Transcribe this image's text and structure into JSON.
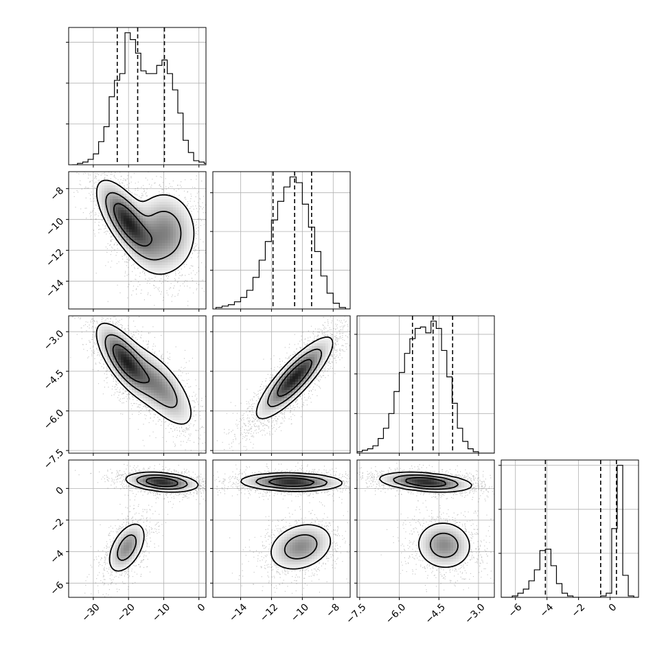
{
  "chart_data": {
    "type": "corner",
    "title": "",
    "grid": true,
    "colors": {
      "ink": "#000000",
      "grid": "#b0b0b0",
      "background": "#ffffff"
    },
    "parameters": [
      {
        "range": [
          -37,
          2
        ],
        "ticks": [
          -30,
          -20,
          -10,
          0
        ],
        "tick_labels": [
          "−30",
          "−20",
          "−10",
          "0"
        ],
        "quantiles": [
          -23.2,
          -17.4,
          -9.8
        ],
        "hist": {
          "start": -36,
          "width": 1.5,
          "counts": [
            0,
            1,
            2,
            4,
            8,
            17,
            28,
            50,
            62,
            67,
            97,
            92,
            82,
            69,
            67,
            67,
            73,
            77,
            67,
            55,
            38,
            18,
            9,
            3,
            2,
            1
          ]
        }
      },
      {
        "range": [
          -15.8,
          -6.9
        ],
        "ticks": [
          -14,
          -12,
          -10,
          -8
        ],
        "tick_labels": [
          "−14",
          "−12",
          "−10",
          "−8"
        ],
        "quantiles": [
          -11.9,
          -10.5,
          -9.4
        ],
        "hist": {
          "start": -15.6,
          "width": 0.4,
          "counts": [
            1,
            2,
            3,
            5,
            8,
            13,
            22,
            34,
            47,
            62,
            75,
            85,
            92,
            88,
            73,
            57,
            40,
            23,
            11,
            4,
            1,
            0
          ]
        }
      },
      {
        "range": [
          -7.6,
          -2.4
        ],
        "ticks": [
          -7.5,
          -6.0,
          -4.5,
          -3.0
        ],
        "tick_labels": [
          "−7.5",
          "−6.0",
          "−4.5",
          "−3.0"
        ],
        "quantiles": [
          -5.5,
          -4.72,
          -3.98
        ],
        "hist": {
          "start": -7.6,
          "width": 0.2,
          "counts": [
            1,
            2,
            3,
            5,
            10,
            17,
            27,
            42,
            55,
            68,
            78,
            85,
            86,
            82,
            90,
            85,
            70,
            52,
            34,
            17,
            8,
            3,
            1,
            0,
            0,
            0
          ]
        }
      },
      {
        "range": [
          -6.9,
          1.8
        ],
        "ticks": [
          -6,
          -4,
          -2,
          0
        ],
        "tick_labels": [
          "−6",
          "−4",
          "−2",
          "0"
        ],
        "quantiles": [
          -4.1,
          -0.6,
          0.4
        ],
        "hist": {
          "start": -6.9,
          "width": 0.35,
          "counts": [
            0,
            0,
            1,
            3,
            6,
            12,
            20,
            34,
            35,
            23,
            10,
            3,
            1,
            0,
            0,
            0,
            0,
            0,
            1,
            3,
            50,
            96,
            16,
            1,
            0
          ]
        }
      }
    ],
    "diagonal_y_ticks": [
      [
        30,
        60,
        90
      ],
      [
        27,
        54,
        81
      ],
      [
        27,
        54,
        81
      ],
      [
        32,
        64,
        96
      ]
    ],
    "panels_2d": [
      {
        "x": 0,
        "y": 1,
        "modes": [
          {
            "mx": -20.5,
            "my": -10.1,
            "sx": 4.2,
            "sy": 1.3,
            "rho": -0.7,
            "w": 1.0
          },
          {
            "mx": -10,
            "my": -10.9,
            "sx": 4.8,
            "sy": 1.4,
            "rho": 0.0,
            "w": 0.62
          }
        ]
      },
      {
        "x": 0,
        "y": 2,
        "modes": [
          {
            "mx": -21,
            "my": -4.1,
            "sx": 4.0,
            "sy": 0.7,
            "rho": -0.72,
            "w": 1.0
          },
          {
            "mx": -11,
            "my": -5.1,
            "sx": 5.0,
            "sy": 0.8,
            "rho": -0.7,
            "w": 0.6
          }
        ]
      },
      {
        "x": 1,
        "y": 2,
        "modes": [
          {
            "mx": -10.5,
            "my": -4.75,
            "sx": 1.2,
            "sy": 0.75,
            "rho": 0.85,
            "w": 1.0
          }
        ]
      },
      {
        "x": 0,
        "y": 3,
        "modes": [
          {
            "mx": -10.5,
            "my": 0.4,
            "sx": 5.0,
            "sy": 0.3,
            "rho": -0.3,
            "w": 1.0
          },
          {
            "mx": -20.5,
            "my": -3.75,
            "sx": 2.8,
            "sy": 0.85,
            "rho": 0.5,
            "w": 0.55
          }
        ]
      },
      {
        "x": 1,
        "y": 3,
        "modes": [
          {
            "mx": -10.7,
            "my": 0.4,
            "sx": 1.6,
            "sy": 0.28,
            "rho": -0.1,
            "w": 1.0
          },
          {
            "mx": -10.1,
            "my": -3.7,
            "sx": 1.1,
            "sy": 0.8,
            "rho": 0.25,
            "w": 0.55
          }
        ]
      },
      {
        "x": 2,
        "y": 3,
        "modes": [
          {
            "mx": -5.0,
            "my": 0.4,
            "sx": 0.85,
            "sy": 0.3,
            "rho": -0.35,
            "w": 1.0
          },
          {
            "mx": -4.3,
            "my": -3.6,
            "sx": 0.55,
            "sy": 0.8,
            "rho": -0.05,
            "w": 0.55
          }
        ]
      }
    ]
  }
}
